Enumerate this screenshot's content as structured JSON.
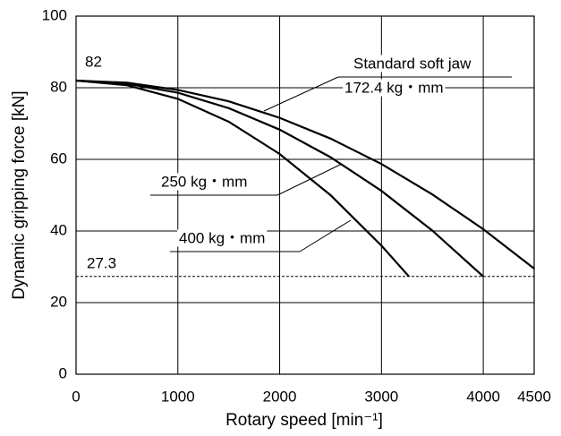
{
  "chart_data": {
    "type": "line",
    "x_label": "Rotary speed [min⁻¹]",
    "y_label": "Dynamic gripping force [kN]",
    "xlim": [
      0,
      4500
    ],
    "xticks": [
      0,
      1000,
      2000,
      3000,
      4000,
      4500
    ],
    "ylim": [
      0,
      100
    ],
    "yticks": [
      0,
      20,
      40,
      60,
      80,
      100
    ],
    "grid": true,
    "reference_line": 27.3,
    "series": [
      {
        "name": "Standard soft jaw",
        "moment": "172.4 kg・mm",
        "color": "#000000",
        "x": [
          0,
          500,
          1000,
          1500,
          2000,
          2500,
          3000,
          3500,
          4000,
          4500
        ],
        "values": [
          82,
          81.4,
          79.4,
          76.2,
          71.6,
          65.8,
          58.7,
          50.2,
          40.5,
          29.5
        ]
      },
      {
        "name": "250 kg・mm",
        "color": "#000000",
        "x": [
          0,
          500,
          1000,
          1500,
          2000,
          2500,
          3000,
          3500,
          4000
        ],
        "values": [
          82,
          81.1,
          78.6,
          74.3,
          68.3,
          60.6,
          51.2,
          40.1,
          27.3
        ]
      },
      {
        "name": "400 kg・mm",
        "color": "#000000",
        "x": [
          0,
          500,
          1000,
          1500,
          2000,
          2500,
          3000,
          3270
        ],
        "values": [
          82,
          80.7,
          76.9,
          70.5,
          61.5,
          50.0,
          35.9,
          27.3
        ]
      }
    ]
  }
}
